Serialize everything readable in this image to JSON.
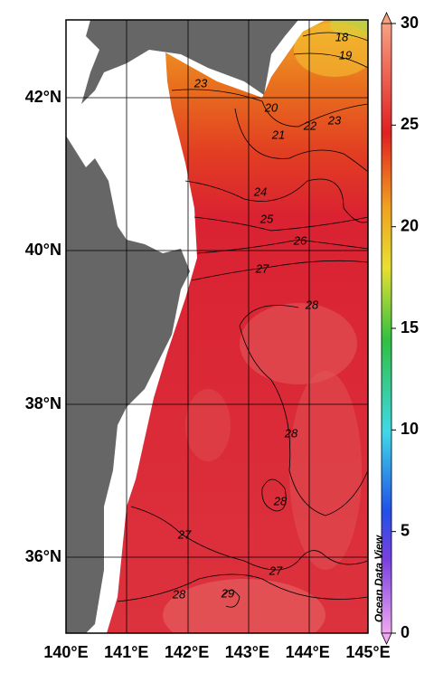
{
  "map": {
    "lat_labels": [
      "42°N",
      "40°N",
      "38°N",
      "36°N"
    ],
    "lon_labels": [
      "140°E",
      "141°E",
      "142°E",
      "143°E",
      "144°E",
      "145°E"
    ],
    "contour_labels": [
      "18",
      "19",
      "23",
      "20",
      "21",
      "22",
      "23",
      "24",
      "25",
      "26",
      "27",
      "28",
      "28",
      "28",
      "27",
      "27",
      "28",
      "29"
    ],
    "colorbar_ticks": [
      0,
      5,
      10,
      15,
      20,
      25,
      30
    ],
    "credit": "Ocean Data View"
  }
}
